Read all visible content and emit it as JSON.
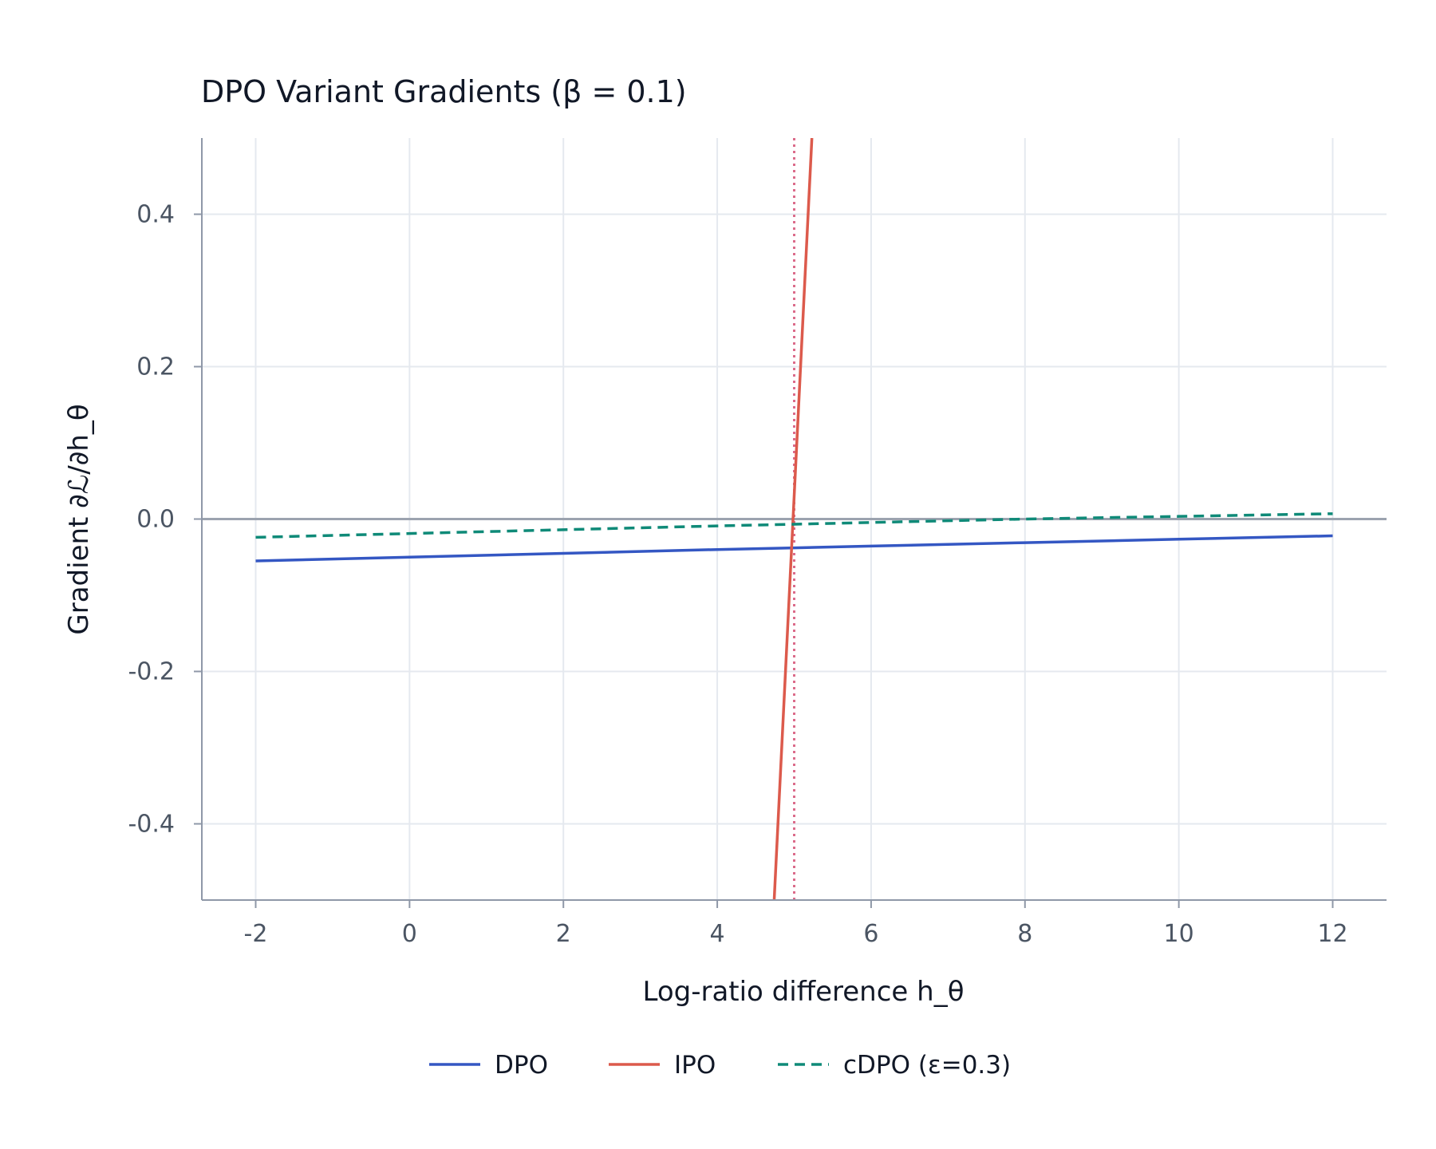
{
  "chart_data": {
    "type": "line",
    "title": "DPO Variant Gradients (β = 0.1)",
    "xlabel": "Log-ratio difference h_θ",
    "ylabel": "Gradient ∂ℒ/∂h_θ",
    "xlim": [
      -2.7,
      12.7
    ],
    "ylim": [
      -0.5,
      0.5
    ],
    "x_ticks": [
      -2,
      0,
      2,
      4,
      6,
      8,
      10,
      12
    ],
    "x_tick_labels": [
      "-2",
      "0",
      "2",
      "4",
      "6",
      "8",
      "10",
      "12"
    ],
    "y_ticks": [
      -0.4,
      -0.2,
      0.0,
      0.2,
      0.4
    ],
    "y_tick_labels": [
      "-0.4",
      "-0.2",
      "0.0",
      "0.2",
      "0.4"
    ],
    "grid": true,
    "legend_position": "bottom-center",
    "reference_lines": [
      {
        "axis": "y",
        "value": 0.0,
        "color": "#9ca3af",
        "style": "solid"
      },
      {
        "axis": "x",
        "value": 5.0,
        "color": "#db6b8a",
        "style": "dotted"
      }
    ],
    "series": [
      {
        "name": "DPO",
        "color": "#3457c3",
        "dash": "solid",
        "x": [
          -2,
          0,
          2,
          4,
          5,
          6,
          8,
          10,
          12
        ],
        "y": [
          -0.055,
          -0.05,
          -0.045,
          -0.04,
          -0.0378,
          -0.0355,
          -0.031,
          -0.0265,
          -0.022
        ]
      },
      {
        "name": "IPO",
        "color": "#dc5a4c",
        "dash": "solid",
        "x": [
          4.74,
          5.23
        ],
        "y": [
          -0.5,
          0.5
        ]
      },
      {
        "name": "cDPO (ε=0.3)",
        "color": "#0f8a78",
        "dash": "dashed",
        "x": [
          -2,
          0,
          2,
          4,
          5,
          6,
          8,
          10,
          12
        ],
        "y": [
          -0.024,
          -0.019,
          -0.014,
          -0.009,
          -0.0068,
          -0.0045,
          0.0,
          0.0035,
          0.007
        ]
      }
    ]
  }
}
